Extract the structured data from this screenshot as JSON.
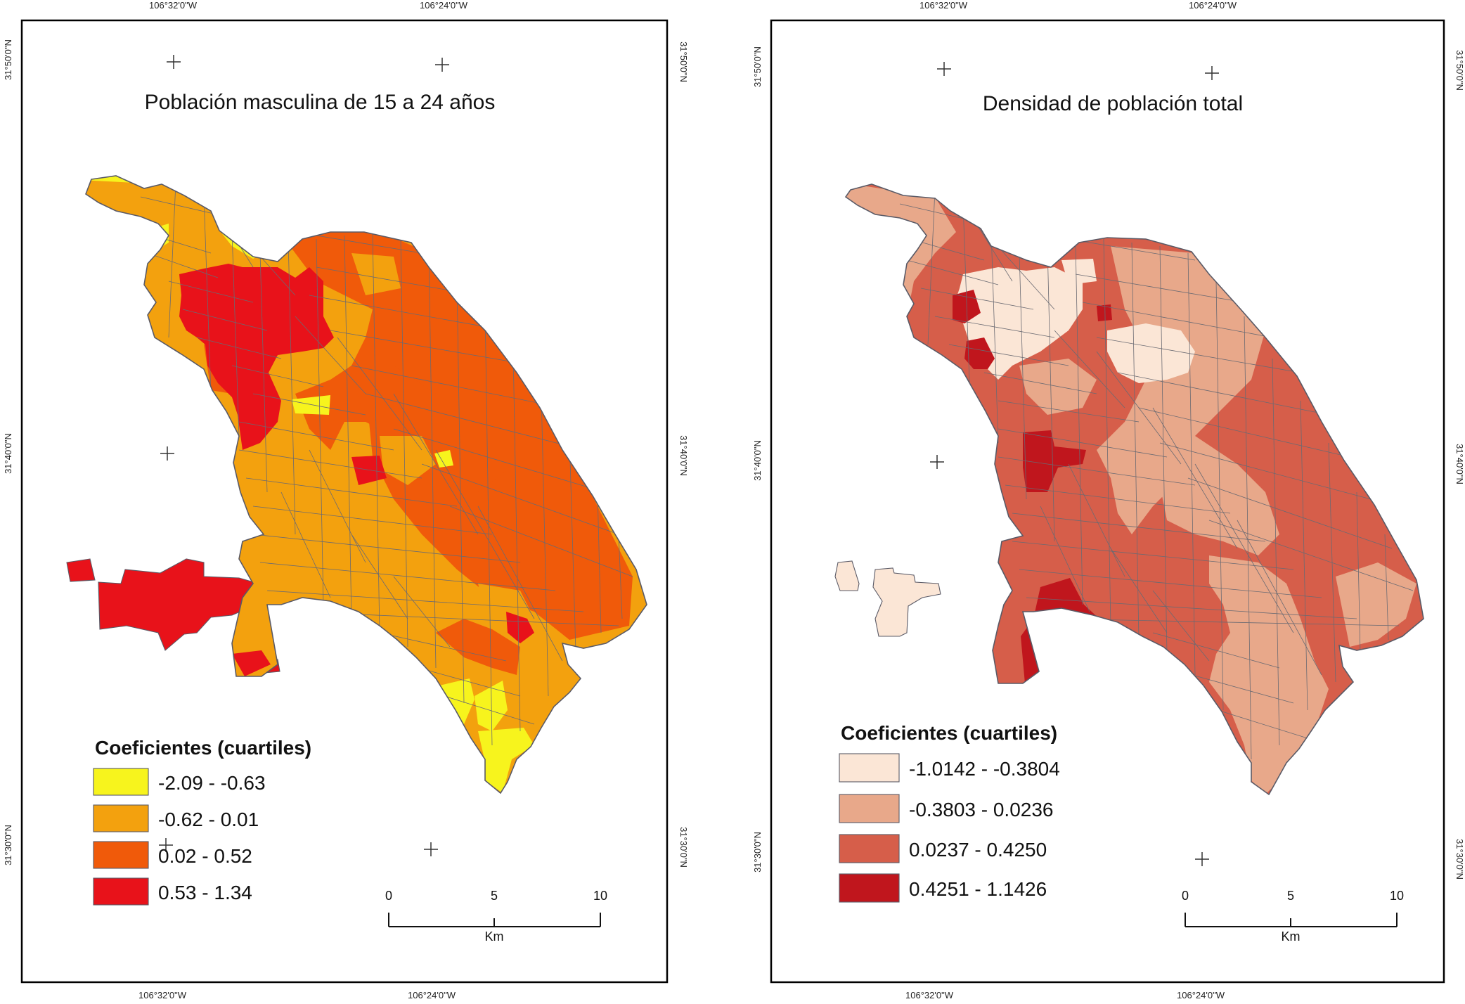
{
  "colors": {
    "panel_a": [
      "#f7f41d",
      "#f3a10e",
      "#f05a0a",
      "#e8121a"
    ],
    "panel_b": [
      "#fbe6d6",
      "#e8a88a",
      "#d65e4a",
      "#c0161d"
    ],
    "outline": "#5a5a66"
  },
  "panels": [
    {
      "title": "Población masculina de 15 a 24 años",
      "coords": {
        "top_lon": [
          "106°32'0\"W",
          "106°24'0\"W"
        ],
        "bottom_lon": [
          "106°32'0\"W",
          "106°24'0\"W"
        ],
        "left_lat": [
          "31°50'0\"N",
          "31°40'0\"N",
          "31°30'0\"N"
        ],
        "right_lat": [
          "31°50'0\"N",
          "31°40'0\"N",
          "31°30'0\"N"
        ]
      },
      "legend": {
        "title": "Coeficientes (cuartiles)",
        "classes": [
          "-2.09 - -0.63",
          "-0.62 - 0.01",
          "0.02 - 0.52",
          "0.53 - 1.34"
        ]
      },
      "scale": {
        "ticks": [
          "0",
          "5",
          "10"
        ],
        "unit": "Km"
      }
    },
    {
      "title": "Densidad de población total",
      "coords": {
        "top_lon": [
          "106°32'0\"W",
          "106°24'0\"W"
        ],
        "bottom_lon": [
          "106°32'0\"W",
          "106°24'0\"W"
        ],
        "left_lat": [
          "31°50'0\"N",
          "31°40'0\"N",
          "31°30'0\"N"
        ],
        "right_lat": [
          "31°50'0\"N",
          "31°40'0\"N",
          "31°30'0\"N"
        ]
      },
      "legend": {
        "title": "Coeficientes (cuartiles)",
        "classes": [
          "-1.0142 - -0.3804",
          "-0.3803 - 0.0236",
          "0.0237 - 0.4250",
          "0.4251 - 1.1426"
        ]
      },
      "scale": {
        "ticks": [
          "0",
          "5",
          "10"
        ],
        "unit": "Km"
      }
    }
  ]
}
